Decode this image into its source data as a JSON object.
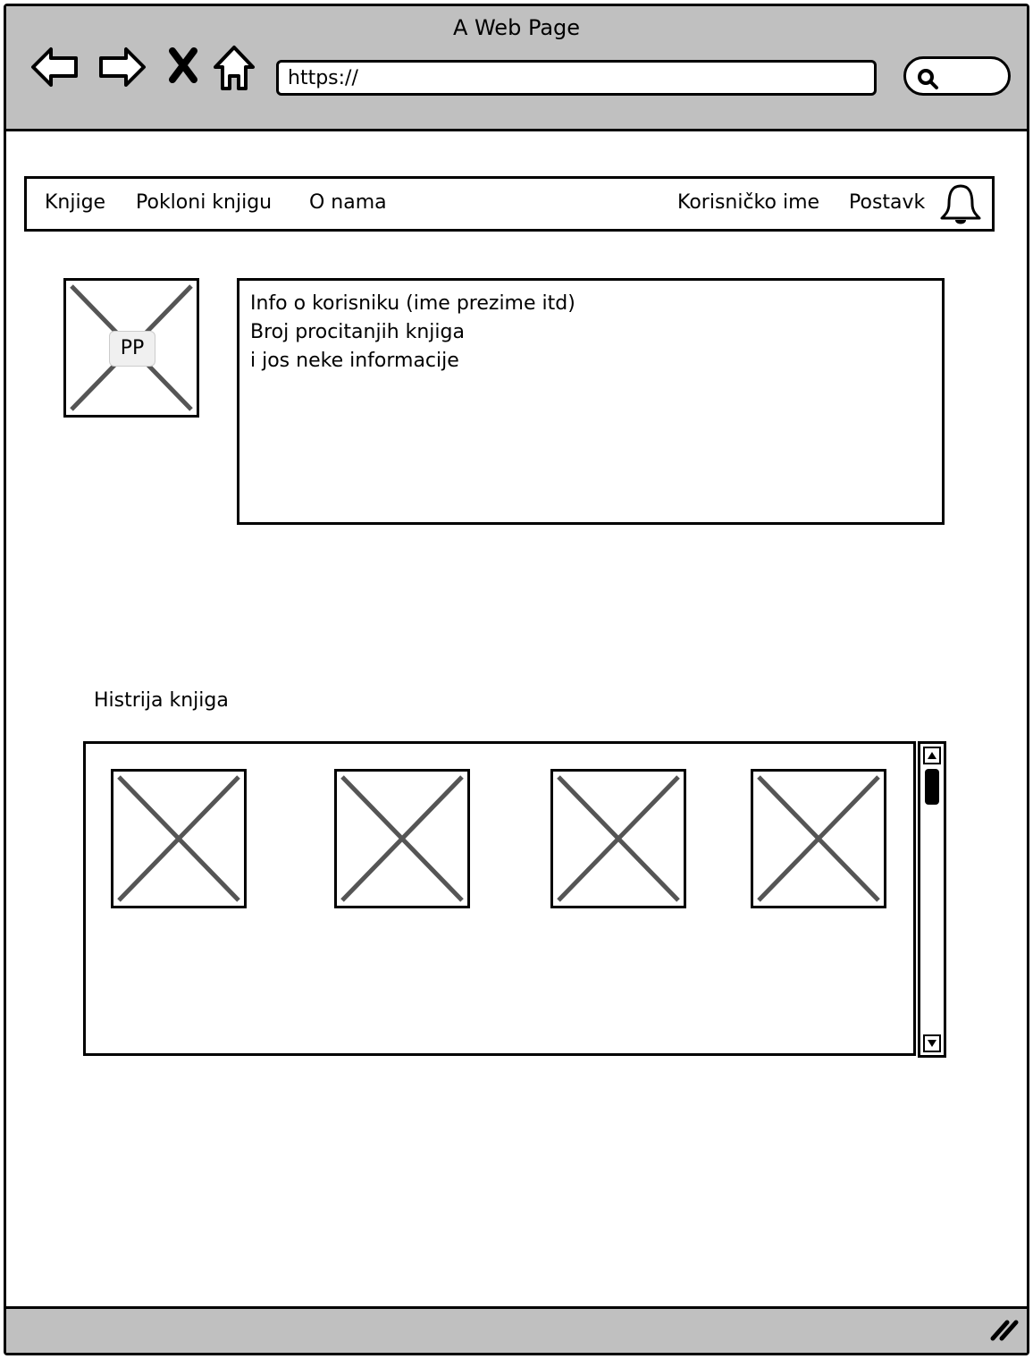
{
  "window": {
    "title": "A Web Page"
  },
  "browser": {
    "url": "https://",
    "nav_icons": [
      "back-arrow-icon",
      "forward-arrow-icon",
      "close-x-icon",
      "home-icon"
    ],
    "search_icon": "search-icon"
  },
  "topnav": {
    "items": [
      "Knjige",
      "Pokloni knjigu",
      "O nama"
    ],
    "username": "Korisničko ime",
    "settings": "Postavk",
    "notification_icon": "bell-icon"
  },
  "profile": {
    "picture_label": "PP",
    "info_lines": [
      "Info o korisniku (ime prezime itd)",
      "Broj procitanjih knjiga",
      "i jos neke informacije"
    ]
  },
  "history": {
    "title": "Histrija knjiga",
    "book_count": 4
  },
  "colors": {
    "chrome": "#c0c0c0",
    "border": "#000000",
    "placeholder_x": "#555555"
  }
}
